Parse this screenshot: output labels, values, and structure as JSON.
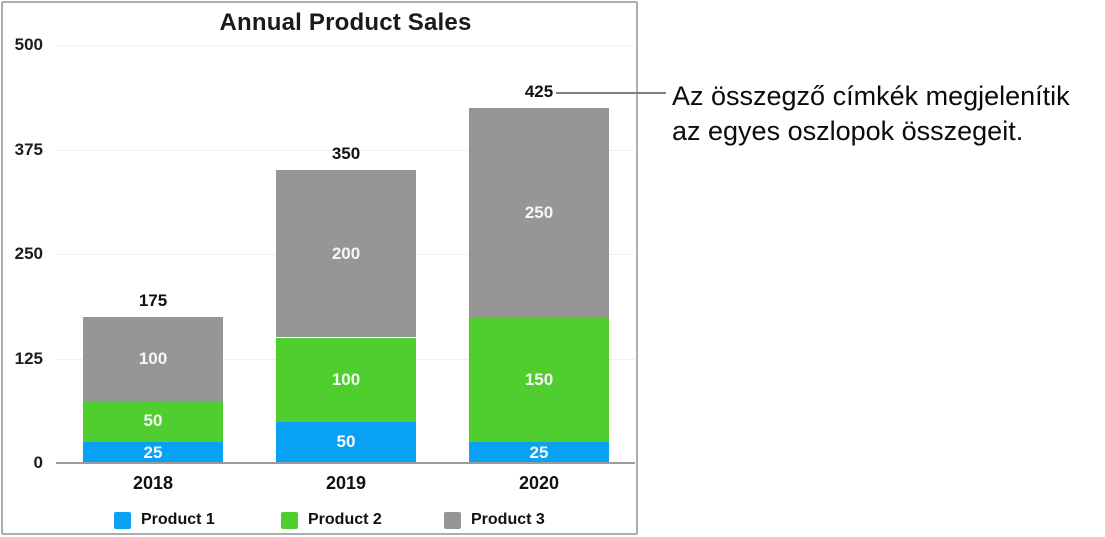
{
  "chart_data": {
    "type": "bar",
    "stacked": true,
    "title": "Annual Product Sales",
    "categories": [
      "2018",
      "2019",
      "2020"
    ],
    "series": [
      {
        "name": "Product 1",
        "color": "#09a1f3",
        "values": [
          25,
          50,
          25
        ]
      },
      {
        "name": "Product 2",
        "color": "#50ce2f",
        "values": [
          50,
          100,
          150
        ]
      },
      {
        "name": "Product 3",
        "color": "#969696",
        "values": [
          100,
          200,
          250
        ]
      }
    ],
    "totals": [
      175,
      350,
      425
    ],
    "y_ticks": [
      0,
      125,
      250,
      375,
      500
    ],
    "ylim": [
      0,
      500
    ],
    "grid": true,
    "legend_position": "bottom",
    "value_labels": "inside-segments",
    "total_labels": "above-bars",
    "segment_label_color": "#f7f7f7"
  },
  "annotation": {
    "line1": "Az összegző címkék megjelenítik",
    "line2": "az egyes oszlopok összegeit.",
    "callout_target_value": "425"
  },
  "colors": {
    "gridline": "#f0f0f0",
    "axis_line": "#9b9b9b",
    "panel_border": "#adadad",
    "callout_line": "#7f7f7f",
    "text": "#111111"
  }
}
